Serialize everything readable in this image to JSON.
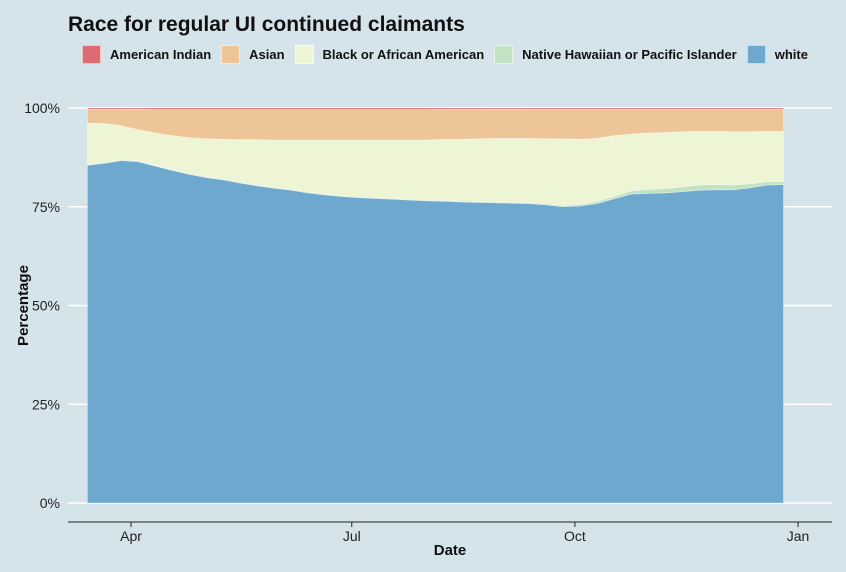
{
  "chart_data": {
    "type": "area",
    "title": "Race for regular UI continued claimants",
    "xlabel": "Date",
    "ylabel": "Percentage",
    "ylim": [
      0,
      100
    ],
    "y_ticks": [
      {
        "value": 0,
        "label": "0%"
      },
      {
        "value": 25,
        "label": "25%"
      },
      {
        "value": 50,
        "label": "50%"
      },
      {
        "value": 75,
        "label": "75%"
      },
      {
        "value": 100,
        "label": "100%"
      }
    ],
    "x_ticks": [
      {
        "date": "2020-04-01",
        "label": "Apr"
      },
      {
        "date": "2020-07-01",
        "label": "Jul"
      },
      {
        "date": "2020-10-01",
        "label": "Oct"
      },
      {
        "date": "2021-01-01",
        "label": "Jan"
      }
    ],
    "xlim": [
      "2020-03-06",
      "2021-01-15"
    ],
    "grid": true,
    "legend_position": "top",
    "dates": [
      "2020-03-14",
      "2020-03-21",
      "2020-03-28",
      "2020-04-04",
      "2020-04-11",
      "2020-04-18",
      "2020-04-25",
      "2020-05-02",
      "2020-05-09",
      "2020-05-16",
      "2020-05-23",
      "2020-05-30",
      "2020-06-06",
      "2020-06-13",
      "2020-06-20",
      "2020-06-27",
      "2020-07-04",
      "2020-07-11",
      "2020-07-18",
      "2020-07-25",
      "2020-08-01",
      "2020-08-08",
      "2020-08-15",
      "2020-08-22",
      "2020-08-29",
      "2020-09-05",
      "2020-09-12",
      "2020-09-19",
      "2020-09-26",
      "2020-10-03",
      "2020-10-10",
      "2020-10-17",
      "2020-10-24",
      "2020-10-31",
      "2020-11-07",
      "2020-11-14",
      "2020-11-21",
      "2020-11-28",
      "2020-12-05",
      "2020-12-12",
      "2020-12-19",
      "2020-12-26"
    ],
    "series": [
      {
        "name": "white",
        "color": "#6fa8cf",
        "values": [
          85.5,
          86.0,
          86.7,
          86.4,
          85.3,
          84.2,
          83.2,
          82.4,
          81.8,
          81.0,
          80.3,
          79.7,
          79.2,
          78.5,
          78.0,
          77.6,
          77.3,
          77.1,
          76.9,
          76.7,
          76.5,
          76.4,
          76.2,
          76.1,
          76.0,
          75.9,
          75.8,
          75.5,
          75.0,
          75.2,
          75.8,
          77.0,
          78.2,
          78.4,
          78.5,
          78.8,
          79.2,
          79.3,
          79.3,
          79.8,
          80.5,
          80.6
        ]
      },
      {
        "name": "Native Hawaiian or Pacific Islander",
        "color": "#c2e2c4",
        "values": [
          0.2,
          0.2,
          0.2,
          0.2,
          0.2,
          0.2,
          0.2,
          0.2,
          0.2,
          0.2,
          0.2,
          0.2,
          0.2,
          0.2,
          0.2,
          0.2,
          0.2,
          0.2,
          0.2,
          0.2,
          0.2,
          0.2,
          0.2,
          0.2,
          0.2,
          0.2,
          0.2,
          0.3,
          0.3,
          0.4,
          0.5,
          0.6,
          0.8,
          1.0,
          1.1,
          1.2,
          1.3,
          1.3,
          1.2,
          1.0,
          0.8,
          0.8
        ]
      },
      {
        "name": "Black or African American",
        "color": "#eef5d4",
        "values": [
          10.5,
          9.9,
          8.6,
          7.9,
          8.2,
          8.6,
          9.1,
          9.6,
          10.1,
          10.8,
          11.5,
          12.0,
          12.5,
          13.2,
          13.7,
          14.1,
          14.4,
          14.6,
          14.8,
          15.0,
          15.2,
          15.5,
          15.7,
          15.9,
          16.1,
          16.2,
          16.3,
          16.4,
          16.9,
          16.5,
          16.0,
          15.4,
          14.4,
          14.3,
          14.2,
          14.0,
          13.6,
          13.5,
          13.5,
          13.2,
          12.8,
          12.7
        ]
      },
      {
        "name": "Asian",
        "color": "#eec598",
        "values": [
          3.5,
          3.6,
          4.2,
          5.2,
          5.9,
          6.6,
          7.1,
          7.4,
          7.5,
          7.6,
          7.6,
          7.7,
          7.7,
          7.7,
          7.7,
          7.7,
          7.7,
          7.7,
          7.7,
          7.7,
          7.7,
          7.6,
          7.6,
          7.5,
          7.4,
          7.4,
          7.4,
          7.5,
          7.5,
          7.6,
          7.4,
          6.7,
          6.3,
          6.0,
          5.9,
          5.7,
          5.6,
          5.6,
          5.7,
          5.7,
          5.6,
          5.6
        ]
      },
      {
        "name": "American Indian",
        "color": "#dc6b72",
        "values": [
          0.3,
          0.3,
          0.3,
          0.3,
          0.4,
          0.4,
          0.4,
          0.4,
          0.4,
          0.4,
          0.4,
          0.4,
          0.4,
          0.4,
          0.4,
          0.4,
          0.4,
          0.4,
          0.4,
          0.4,
          0.4,
          0.3,
          0.3,
          0.3,
          0.3,
          0.3,
          0.3,
          0.3,
          0.3,
          0.3,
          0.3,
          0.3,
          0.3,
          0.3,
          0.3,
          0.3,
          0.3,
          0.3,
          0.3,
          0.3,
          0.3,
          0.3
        ]
      }
    ],
    "legend": [
      {
        "name": "American Indian",
        "color": "#dc6b72"
      },
      {
        "name": "Asian",
        "color": "#eec598"
      },
      {
        "name": "Black or African American",
        "color": "#eef5d4"
      },
      {
        "name": "Native Hawaiian or Pacific Islander",
        "color": "#c2e2c4"
      },
      {
        "name": "white",
        "color": "#6fa8cf"
      }
    ]
  }
}
